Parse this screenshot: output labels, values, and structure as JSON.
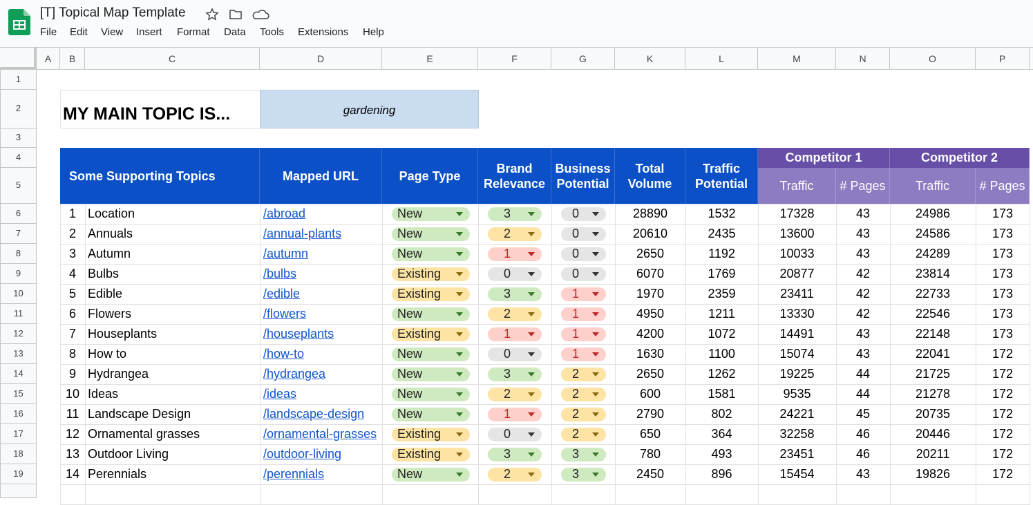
{
  "app": {
    "title": "[T] Topical Map Template",
    "menu": [
      "File",
      "Edit",
      "View",
      "Insert",
      "Format",
      "Data",
      "Tools",
      "Extensions",
      "Help"
    ]
  },
  "sheet": {
    "columns": [
      "A",
      "B",
      "C",
      "D",
      "E",
      "F",
      "G",
      "K",
      "L",
      "M",
      "N",
      "O",
      "P"
    ],
    "rows": [
      1,
      2,
      3,
      4,
      5,
      6,
      7,
      8,
      9,
      10,
      11,
      12,
      13,
      14,
      15,
      16,
      17,
      18,
      19
    ],
    "main_topic_label": "MY MAIN TOPIC IS...",
    "main_topic": "gardening",
    "headers": [
      "Some Supporting Topics",
      "Mapped URL",
      "Page Type",
      "Brand Relevance",
      "Business Potential",
      "Total Volume",
      "Traffic Potential"
    ],
    "competitors": [
      {
        "name": "Competitor 1",
        "sub": [
          "Traffic",
          "# Pages"
        ]
      },
      {
        "name": "Competitor 2",
        "sub": [
          "Traffic",
          "# Pages"
        ]
      }
    ],
    "data": [
      [
        1,
        "Location",
        "/abroad",
        "New",
        3,
        0,
        28890,
        1532,
        17328,
        43,
        24986,
        173
      ],
      [
        2,
        "Annuals",
        "/annual-plants",
        "New",
        2,
        0,
        20610,
        2435,
        13600,
        43,
        24586,
        173
      ],
      [
        3,
        "Autumn",
        "/autumn",
        "New",
        1,
        0,
        2650,
        1192,
        10033,
        43,
        24289,
        173
      ],
      [
        4,
        "Bulbs",
        "/bulbs",
        "Existing",
        0,
        0,
        6070,
        1769,
        20877,
        42,
        23814,
        173
      ],
      [
        5,
        "Edible",
        "/edible",
        "Existing",
        3,
        1,
        1970,
        2359,
        23411,
        42,
        22733,
        173
      ],
      [
        6,
        "Flowers",
        "/flowers",
        "New",
        2,
        1,
        4950,
        1211,
        13330,
        42,
        22546,
        173
      ],
      [
        7,
        "Houseplants",
        "/houseplants",
        "Existing",
        1,
        1,
        4200,
        1072,
        14491,
        43,
        22148,
        173
      ],
      [
        8,
        "How to",
        "/how-to",
        "New",
        0,
        1,
        1630,
        1100,
        15074,
        43,
        22041,
        172
      ],
      [
        9,
        "Hydrangea",
        "/hydrangea",
        "New",
        3,
        2,
        2650,
        1262,
        19225,
        44,
        21725,
        172
      ],
      [
        10,
        "Ideas",
        "/ideas",
        "New",
        2,
        2,
        600,
        1581,
        9535,
        44,
        21278,
        172
      ],
      [
        11,
        "Landscape Design",
        "/landscape-design",
        "New",
        1,
        2,
        2790,
        802,
        24221,
        45,
        20735,
        172
      ],
      [
        12,
        "Ornamental grasses",
        "/ornamental-grasses",
        "Existing",
        0,
        2,
        650,
        364,
        32258,
        46,
        20446,
        172
      ],
      [
        13,
        "Outdoor Living",
        "/outdoor-living",
        "Existing",
        3,
        3,
        780,
        493,
        23451,
        46,
        20211,
        172
      ],
      [
        14,
        "Perennials",
        "/perennials",
        "New",
        2,
        3,
        2450,
        896,
        15454,
        43,
        19826,
        172
      ]
    ]
  }
}
